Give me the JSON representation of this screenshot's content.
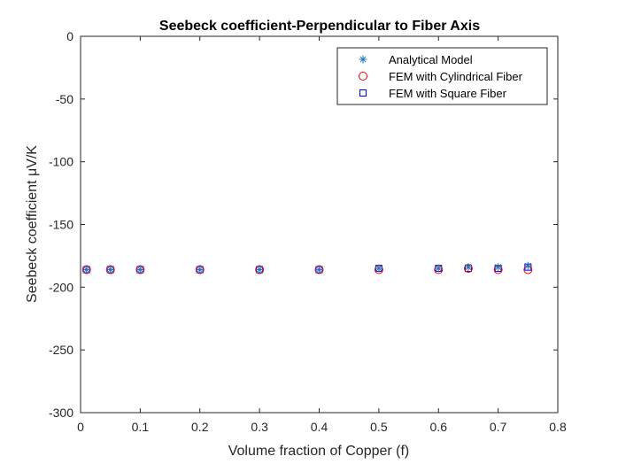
{
  "chart_data": {
    "type": "scatter",
    "title": "Seebeck coefficient-Perpendicular to Fiber Axis",
    "xlabel": "Volume fraction of Copper (f)",
    "ylabel": "Seebeck coefficient μV/K",
    "xlim": [
      0,
      0.8
    ],
    "ylim": [
      -300,
      0
    ],
    "xticks": [
      "0",
      "0.1",
      "0.2",
      "0.3",
      "0.4",
      "0.5",
      "0.6",
      "0.7",
      "0.8"
    ],
    "yticks": [
      "0",
      "-50",
      "-100",
      "-150",
      "-200",
      "-250",
      "-300"
    ],
    "grid": false,
    "legend_position": "top-right",
    "series": [
      {
        "name": "Analytical Model",
        "marker": "asterisk",
        "color": "#1f77b4",
        "x": [
          0.01,
          0.05,
          0.1,
          0.2,
          0.3,
          0.4,
          0.5,
          0.6,
          0.65,
          0.7,
          0.75
        ],
        "y": [
          -186,
          -186,
          -186,
          -186,
          -186,
          -186,
          -185,
          -185,
          -184,
          -184,
          -183
        ]
      },
      {
        "name": "FEM with Cylindrical Fiber",
        "marker": "circle",
        "color": "#ff0000",
        "x": [
          0.01,
          0.05,
          0.1,
          0.2,
          0.3,
          0.4,
          0.5,
          0.6,
          0.65,
          0.7,
          0.75
        ],
        "y": [
          -186,
          -186,
          -186,
          -186,
          -186,
          -186,
          -186,
          -186,
          -185,
          -186,
          -186
        ]
      },
      {
        "name": "FEM with Square Fiber",
        "marker": "square",
        "color": "#0000ff",
        "x": [
          0.01,
          0.05,
          0.1,
          0.2,
          0.3,
          0.4,
          0.5,
          0.6,
          0.65,
          0.7,
          0.75
        ],
        "y": [
          -186,
          -186,
          -186,
          -186,
          -186,
          -186,
          -185,
          -185,
          -185,
          -185,
          -184
        ]
      }
    ]
  }
}
